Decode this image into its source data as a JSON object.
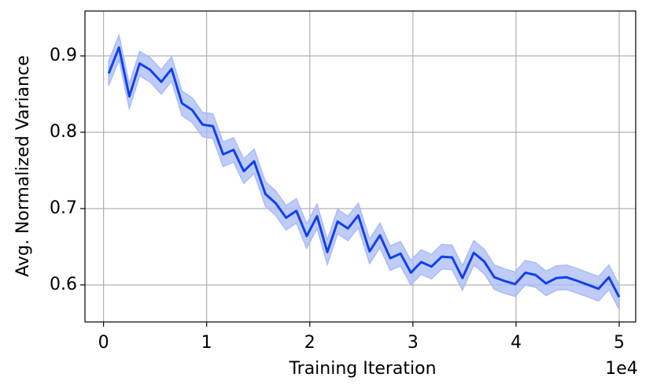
{
  "chart_data": {
    "type": "line",
    "x_label": "Training Iteration",
    "y_label": "Avg. Normalized Variance",
    "x_offset_label": "1e4",
    "x": [
      0.05,
      0.15,
      0.25,
      0.35,
      0.45,
      0.56,
      0.66,
      0.76,
      0.86,
      0.96,
      1.06,
      1.16,
      1.26,
      1.36,
      1.46,
      1.57,
      1.67,
      1.77,
      1.87,
      1.97,
      2.07,
      2.17,
      2.27,
      2.37,
      2.47,
      2.58,
      2.68,
      2.78,
      2.88,
      2.98,
      3.08,
      3.18,
      3.28,
      3.38,
      3.48,
      3.59,
      3.69,
      3.79,
      3.89,
      3.99,
      4.09,
      4.19,
      4.29,
      4.39,
      4.49,
      4.6,
      4.7,
      4.8,
      4.9,
      5.0
    ],
    "values": [
      0.877,
      0.911,
      0.847,
      0.89,
      0.882,
      0.866,
      0.883,
      0.838,
      0.829,
      0.81,
      0.808,
      0.771,
      0.777,
      0.749,
      0.762,
      0.719,
      0.707,
      0.688,
      0.697,
      0.664,
      0.69,
      0.643,
      0.683,
      0.674,
      0.691,
      0.644,
      0.665,
      0.635,
      0.641,
      0.616,
      0.63,
      0.624,
      0.637,
      0.636,
      0.609,
      0.642,
      0.631,
      0.61,
      0.605,
      0.601,
      0.616,
      0.613,
      0.602,
      0.609,
      0.61,
      0.605,
      0.6,
      0.595,
      0.61,
      0.584
    ],
    "upper": [
      0.893,
      0.927,
      0.863,
      0.906,
      0.898,
      0.882,
      0.899,
      0.854,
      0.845,
      0.826,
      0.824,
      0.787,
      0.793,
      0.765,
      0.778,
      0.735,
      0.723,
      0.704,
      0.713,
      0.68,
      0.706,
      0.659,
      0.699,
      0.69,
      0.707,
      0.66,
      0.681,
      0.651,
      0.657,
      0.632,
      0.646,
      0.64,
      0.653,
      0.652,
      0.625,
      0.658,
      0.647,
      0.626,
      0.621,
      0.617,
      0.632,
      0.629,
      0.618,
      0.625,
      0.626,
      0.621,
      0.616,
      0.611,
      0.626,
      0.6
    ],
    "lower": [
      0.861,
      0.895,
      0.831,
      0.874,
      0.866,
      0.85,
      0.867,
      0.822,
      0.813,
      0.794,
      0.792,
      0.755,
      0.761,
      0.733,
      0.746,
      0.703,
      0.691,
      0.672,
      0.681,
      0.648,
      0.674,
      0.627,
      0.667,
      0.658,
      0.675,
      0.628,
      0.649,
      0.619,
      0.625,
      0.6,
      0.614,
      0.608,
      0.621,
      0.62,
      0.593,
      0.626,
      0.615,
      0.594,
      0.589,
      0.585,
      0.6,
      0.597,
      0.586,
      0.593,
      0.594,
      0.589,
      0.584,
      0.579,
      0.594,
      0.568
    ],
    "color": "#0f40f0",
    "band_color": "#a9bbf6",
    "xlim": [
      -0.18,
      5.16
    ],
    "xticks": [
      0,
      1,
      2,
      3,
      4,
      5
    ],
    "ylim": [
      0.5515,
      0.9588
    ],
    "yticks": [
      0.6,
      0.7,
      0.8,
      0.9
    ],
    "grid": true
  }
}
